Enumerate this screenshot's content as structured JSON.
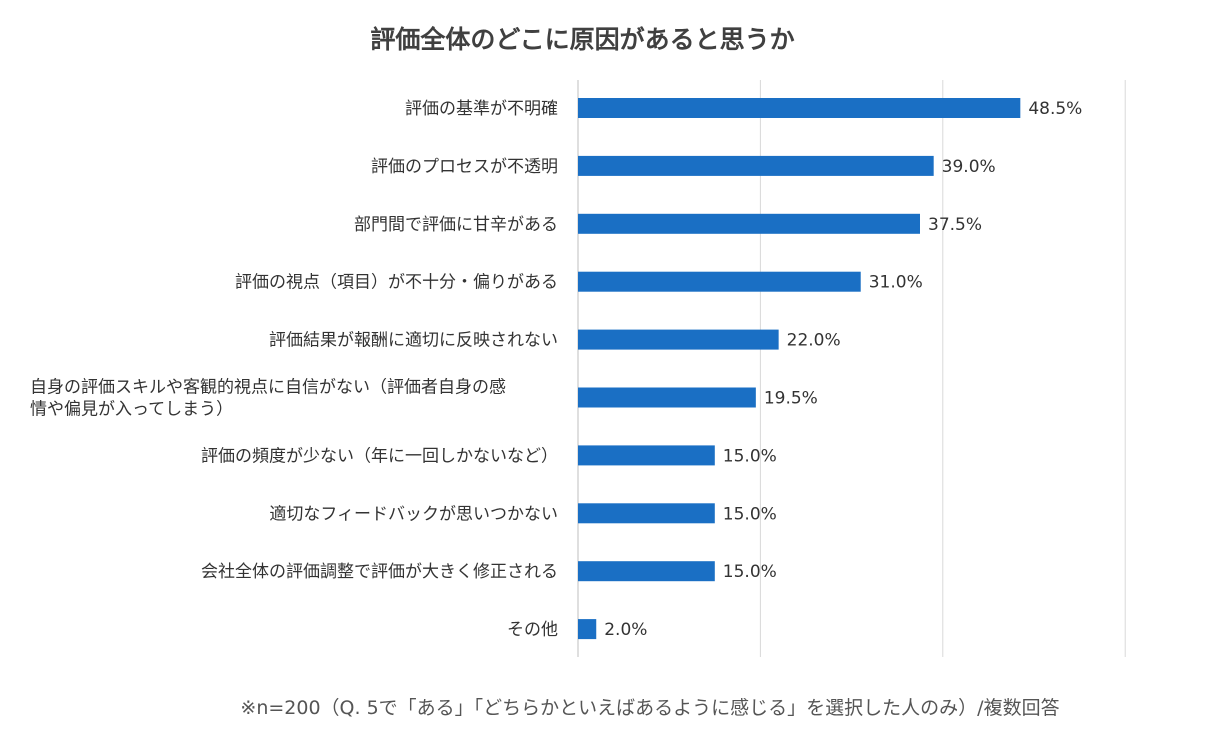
{
  "chart_data": {
    "type": "bar",
    "orientation": "horizontal",
    "title": "評価全体のどこに原因があると思うか",
    "categories": [
      "評価の基準が不明確",
      "評価のプロセスが不透明",
      "部門間で評価に甘辛がある",
      "評価の視点（項目）が不十分・偏りがある",
      "評価結果が報酬に適切に反映されない",
      "自身の評価スキルや客観的視点に自信がない（評価者自身の感\n情や偏見が入ってしまう）",
      "評価の頻度が少ない（年に一回しかないなど）",
      "適切なフィードバックが思いつかない",
      "会社全体の評価調整で評価が大きく修正される",
      "その他"
    ],
    "values": [
      48.5,
      39.0,
      37.5,
      31.0,
      22.0,
      19.5,
      15.0,
      15.0,
      15.0,
      2.0
    ],
    "value_labels": [
      "48.5%",
      "39.0%",
      "37.5%",
      "31.0%",
      "22.0%",
      "19.5%",
      "15.0%",
      "15.0%",
      "15.0%",
      "2.0%"
    ],
    "xlim": [
      0,
      60
    ],
    "grid": true,
    "bar_color": "#1a6fc4",
    "note": "※n=200（Q. 5で「ある」「どちらかといえばあるように感じる」を選択した人のみ）/複数回答"
  }
}
